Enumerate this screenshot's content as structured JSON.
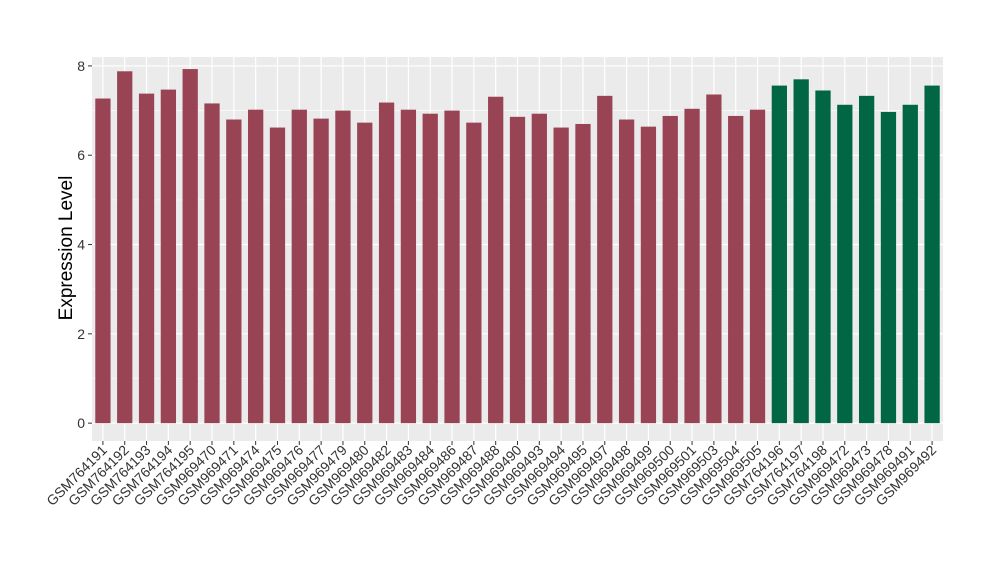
{
  "chart_data": {
    "type": "bar",
    "title": "",
    "xlabel": "",
    "ylabel": "Expression Level",
    "ylim": [
      0,
      8.2
    ],
    "yticks": [
      0,
      2,
      4,
      6,
      8
    ],
    "grid": true,
    "legend": "none",
    "categories": [
      "GSM764191",
      "GSM764192",
      "GSM764193",
      "GSM764194",
      "GSM764195",
      "GSM969470",
      "GSM969471",
      "GSM969474",
      "GSM969475",
      "GSM969476",
      "GSM969477",
      "GSM969479",
      "GSM969480",
      "GSM969482",
      "GSM969483",
      "GSM969484",
      "GSM969486",
      "GSM969487",
      "GSM969488",
      "GSM969490",
      "GSM969493",
      "GSM969494",
      "GSM969495",
      "GSM969497",
      "GSM969498",
      "GSM969499",
      "GSM969500",
      "GSM969501",
      "GSM969503",
      "GSM969504",
      "GSM969505",
      "GSM764196",
      "GSM764197",
      "GSM764198",
      "GSM969472",
      "GSM969473",
      "GSM969478",
      "GSM969491",
      "GSM969492"
    ],
    "values": [
      7.27,
      7.88,
      7.38,
      7.47,
      7.93,
      7.16,
      6.8,
      7.02,
      6.62,
      7.02,
      6.82,
      7.0,
      6.73,
      7.18,
      7.02,
      6.93,
      7.0,
      6.73,
      7.31,
      6.86,
      6.93,
      6.62,
      6.7,
      7.33,
      6.8,
      6.64,
      6.88,
      7.04,
      7.36,
      6.88,
      7.02,
      7.56,
      7.7,
      7.45,
      7.13,
      7.33,
      6.97,
      7.13,
      7.56
    ],
    "groups": [
      "a",
      "a",
      "a",
      "a",
      "a",
      "a",
      "a",
      "a",
      "a",
      "a",
      "a",
      "a",
      "a",
      "a",
      "a",
      "a",
      "a",
      "a",
      "a",
      "a",
      "a",
      "a",
      "a",
      "a",
      "a",
      "a",
      "a",
      "a",
      "a",
      "a",
      "a",
      "b",
      "b",
      "b",
      "b",
      "b",
      "b",
      "b",
      "b"
    ],
    "colors": {
      "a": "#994455",
      "b": "#006644",
      "panel": "#ebebeb",
      "grid": "#ffffff"
    }
  }
}
